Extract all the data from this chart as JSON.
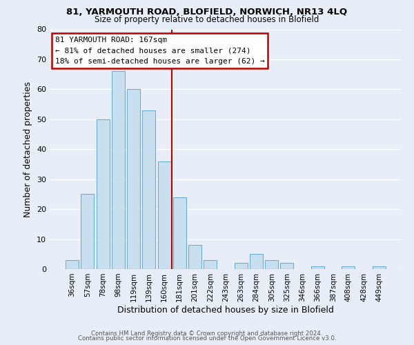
{
  "title": "81, YARMOUTH ROAD, BLOFIELD, NORWICH, NR13 4LQ",
  "subtitle": "Size of property relative to detached houses in Blofield",
  "xlabel": "Distribution of detached houses by size in Blofield",
  "ylabel": "Number of detached properties",
  "bar_labels": [
    "36sqm",
    "57sqm",
    "78sqm",
    "98sqm",
    "119sqm",
    "139sqm",
    "160sqm",
    "181sqm",
    "201sqm",
    "222sqm",
    "243sqm",
    "263sqm",
    "284sqm",
    "305sqm",
    "325sqm",
    "346sqm",
    "366sqm",
    "387sqm",
    "408sqm",
    "428sqm",
    "449sqm"
  ],
  "bar_values": [
    3,
    25,
    50,
    66,
    60,
    53,
    36,
    24,
    8,
    3,
    0,
    2,
    5,
    3,
    2,
    0,
    1,
    0,
    1,
    0,
    1
  ],
  "bar_color": "#c8dff0",
  "bar_edge_color": "#6aaed6",
  "highlight_line_color": "#bb0000",
  "annotation_title": "81 YARMOUTH ROAD: 167sqm",
  "annotation_line1": "← 81% of detached houses are smaller (274)",
  "annotation_line2": "18% of semi-detached houses are larger (62) →",
  "annotation_box_color": "#ffffff",
  "annotation_box_edge": "#bb0000",
  "ylim": [
    0,
    80
  ],
  "yticks": [
    0,
    10,
    20,
    30,
    40,
    50,
    60,
    70,
    80
  ],
  "footer1": "Contains HM Land Registry data © Crown copyright and database right 2024.",
  "footer2": "Contains public sector information licensed under the Open Government Licence v3.0.",
  "background_color": "#e8eef8",
  "grid_color": "#ffffff"
}
